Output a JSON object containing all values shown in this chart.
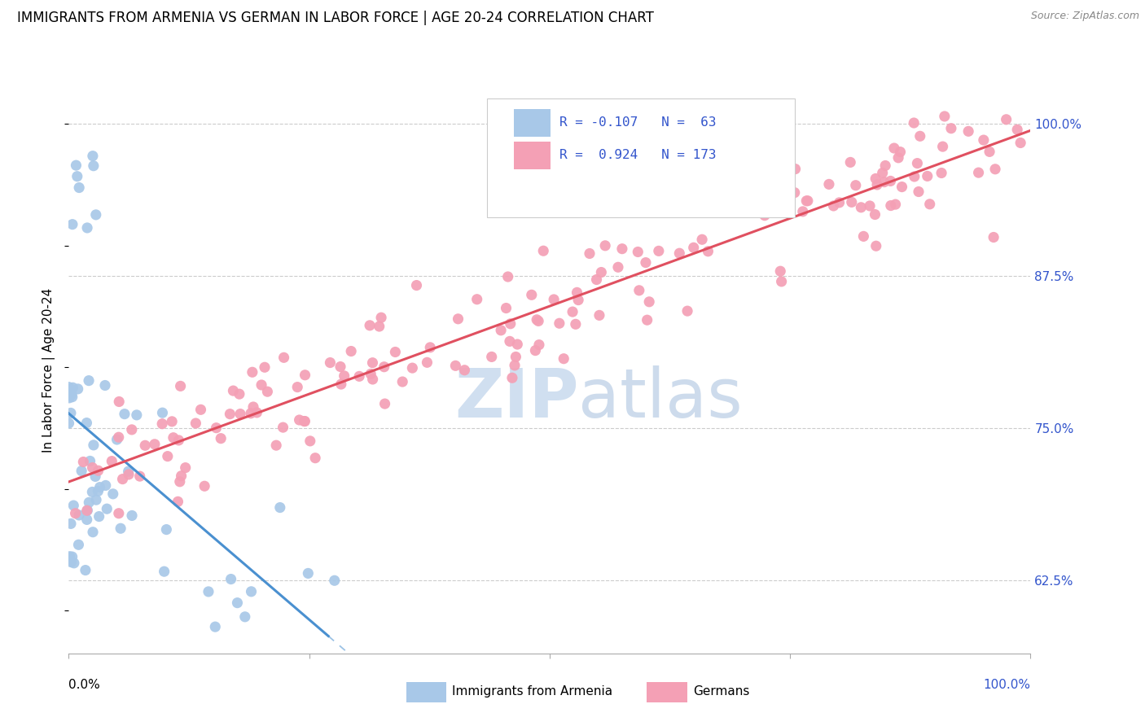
{
  "title": "IMMIGRANTS FROM ARMENIA VS GERMAN IN LABOR FORCE | AGE 20-24 CORRELATION CHART",
  "source": "Source: ZipAtlas.com",
  "ylabel": "In Labor Force | Age 20-24",
  "ytick_labels": [
    "62.5%",
    "75.0%",
    "87.5%",
    "100.0%"
  ],
  "ytick_values": [
    0.625,
    0.75,
    0.875,
    1.0
  ],
  "xlim": [
    0.0,
    1.0
  ],
  "ylim": [
    0.565,
    1.03
  ],
  "armenia_R": -0.107,
  "armenia_N": 63,
  "german_R": 0.924,
  "german_N": 173,
  "armenia_color": "#a8c8e8",
  "german_color": "#f4a0b5",
  "armenia_line_color": "#4a90d0",
  "german_line_color": "#e05060",
  "legend_text_color": "#3355cc",
  "watermark_color": "#d0dff0",
  "background_color": "#ffffff",
  "grid_color": "#cccccc",
  "right_tick_color": "#3355cc",
  "bottom_tick_color": "#333333"
}
